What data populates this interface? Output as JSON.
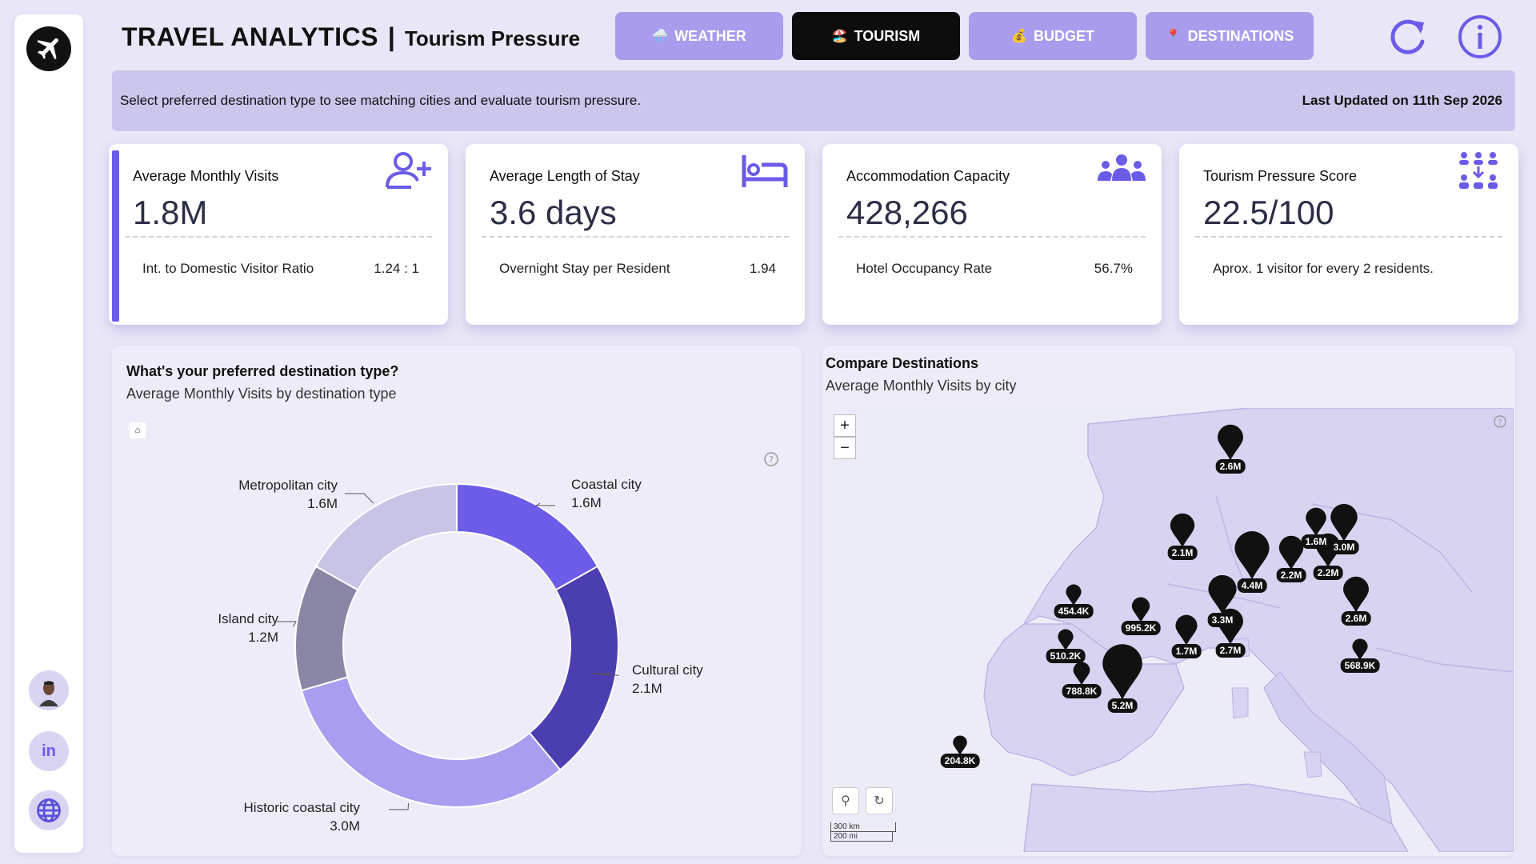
{
  "header": {
    "title": "TRAVEL ANALYTICS",
    "separator": "|",
    "subtitle": "Tourism Pressure"
  },
  "nav": {
    "tabs": [
      {
        "label": "WEATHER",
        "icon": "weather-icon",
        "emoji": "🌧️",
        "active": false
      },
      {
        "label": "TOURISM",
        "icon": "tourism-icon",
        "emoji": "🏖️",
        "active": true
      },
      {
        "label": "BUDGET",
        "icon": "budget-icon",
        "emoji": "💰",
        "active": false
      },
      {
        "label": "DESTINATIONS",
        "icon": "pin-icon",
        "emoji": "📍",
        "active": false
      }
    ]
  },
  "info_bar": {
    "instruction": "Select preferred destination type to see matching cities and evaluate tourism pressure.",
    "last_updated": "Last Updated on 11th Sep 2026"
  },
  "kpis": [
    {
      "label": "Average Monthly Visits",
      "value": "1.8M",
      "sub_label": "Int. to Domestic Visitor Ratio",
      "sub_value": "1.24 : 1",
      "icon": "add-user-icon"
    },
    {
      "label": "Average Length of Stay",
      "value": "3.6 days",
      "sub_label": "Overnight Stay per Resident",
      "sub_value": "1.94",
      "icon": "bed-icon"
    },
    {
      "label": "Accommodation Capacity",
      "value": "428,266",
      "sub_label": "Hotel Occupancy Rate",
      "sub_value": "56.7%",
      "icon": "group-icon"
    },
    {
      "label": "Tourism Pressure Score",
      "value": "22.5/100",
      "sub_label": "Aprox. 1 visitor for every 2 residents.",
      "sub_value": "",
      "icon": "crowd-icon"
    }
  ],
  "donut_panel": {
    "title": "What's your preferred destination type?",
    "subtitle": "Average Monthly Visits by destination type"
  },
  "map_panel": {
    "title": "Compare Destinations",
    "subtitle": "Average Monthly Visits by city",
    "zoom_in": "+",
    "zoom_out": "−",
    "scale_km": "300 km",
    "scale_mi": "200 mi",
    "pins": [
      {
        "label": "2.6M",
        "size": 1.0
      },
      {
        "label": "2.1M",
        "size": 0.95
      },
      {
        "label": "4.4M",
        "size": 1.35
      },
      {
        "label": "2.2M",
        "size": 0.95
      },
      {
        "label": "1.6M",
        "size": 0.8
      },
      {
        "label": "3.0M",
        "size": 1.05
      },
      {
        "label": "2.2M",
        "size": 0.95
      },
      {
        "label": "2.6M",
        "size": 1.0
      },
      {
        "label": "3.3M",
        "size": 1.1
      },
      {
        "label": "2.7M",
        "size": 1.0
      },
      {
        "label": "1.7M",
        "size": 0.85
      },
      {
        "label": "995.2K",
        "size": 0.7
      },
      {
        "label": "454.4K",
        "size": 0.6
      },
      {
        "label": "510.2K",
        "size": 0.6
      },
      {
        "label": "788.8K",
        "size": 0.65
      },
      {
        "label": "5.2M",
        "size": 1.55
      },
      {
        "label": "568.9K",
        "size": 0.6
      },
      {
        "label": "204.8K",
        "size": 0.55
      }
    ]
  },
  "chart_data": {
    "type": "pie",
    "title": "What's your preferred destination type?",
    "subtitle": "Average Monthly Visits by destination type",
    "unit": "M",
    "categories": [
      "Coastal city",
      "Cultural city",
      "Historic coastal city",
      "Island city",
      "Metropolitan city"
    ],
    "values": [
      1.6,
      2.1,
      3.0,
      1.2,
      1.6
    ],
    "value_labels": [
      "1.6M",
      "2.1M",
      "3.0M",
      "1.2M",
      "1.6M"
    ],
    "colors": [
      "#6c5ce7",
      "#4a3eb0",
      "#a89ef0",
      "#8a87a6",
      "#c7c4e6"
    ],
    "donut": true,
    "legend": "none"
  },
  "colors": {
    "accent": "#6b5ce7",
    "tab_inactive": "#a99cec",
    "tab_active": "#0d0d0d",
    "background": "#e9e6f7"
  }
}
